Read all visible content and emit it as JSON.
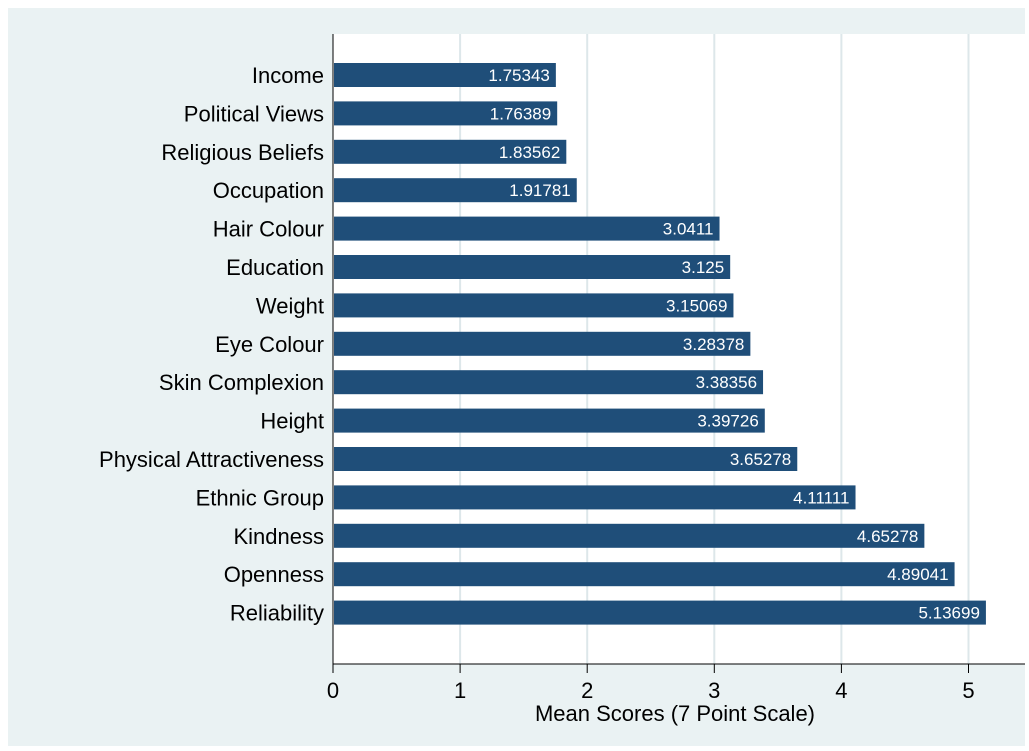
{
  "chart_data": {
    "type": "bar",
    "orientation": "horizontal",
    "categories": [
      "Income",
      "Political Views",
      "Religious Beliefs",
      "Occupation",
      "Hair Colour",
      "Education",
      "Weight",
      "Eye Colour",
      "Skin Complexion",
      "Height",
      "Physical Attractiveness",
      "Ethnic Group",
      "Kindness",
      "Openness",
      "Reliability"
    ],
    "values": [
      1.75343,
      1.76389,
      1.83562,
      1.91781,
      3.0411,
      3.125,
      3.15069,
      3.28378,
      3.38356,
      3.39726,
      3.65278,
      4.11111,
      4.65278,
      4.89041,
      5.13699
    ],
    "value_labels": [
      "1.75343",
      "1.76389",
      "1.83562",
      "1.91781",
      "3.0411",
      "3.125",
      "3.15069",
      "3.28378",
      "3.38356",
      "3.39726",
      "3.65278",
      "4.11111",
      "4.65278",
      "4.89041",
      "5.13699"
    ],
    "xlabel": "Mean Scores (7 Point Scale)",
    "ylabel": "",
    "xlim": [
      0,
      5.4
    ],
    "xticks": [
      0,
      1,
      2,
      3,
      4,
      5
    ],
    "xtick_labels": [
      "0",
      "1",
      "2",
      "3",
      "4",
      "5"
    ],
    "grid": true,
    "bar_color": "#1f4e79",
    "grid_color": "#dde7ea",
    "background_color": "#eaf2f3",
    "plot_background_color": "#ffffff"
  }
}
